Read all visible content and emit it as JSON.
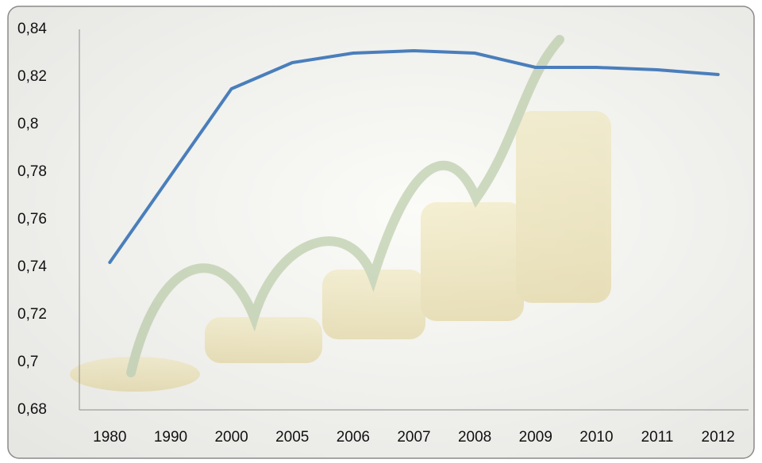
{
  "chart_data": {
    "type": "line",
    "categories": [
      "1980",
      "1990",
      "2000",
      "2005",
      "2006",
      "2007",
      "2008",
      "2009",
      "2010",
      "2011",
      "2012"
    ],
    "series": [
      {
        "color": "#4a7ebb",
        "values": [
          0.742,
          0.7785,
          0.815,
          0.826,
          0.83,
          0.831,
          0.83,
          0.824,
          0.824,
          0.823,
          0.821
        ]
      }
    ],
    "ylim": [
      0.68,
      0.84
    ],
    "yticks": [
      {
        "value": 0.68,
        "label": "0,68"
      },
      {
        "value": 0.7,
        "label": "0,7"
      },
      {
        "value": 0.72,
        "label": "0,72"
      },
      {
        "value": 0.74,
        "label": "0,74"
      },
      {
        "value": 0.76,
        "label": "0,76"
      },
      {
        "value": 0.78,
        "label": "0,78"
      },
      {
        "value": 0.8,
        "label": "0,8"
      },
      {
        "value": 0.82,
        "label": "0,82"
      },
      {
        "value": 0.84,
        "label": "0,84"
      }
    ],
    "grid": false
  }
}
